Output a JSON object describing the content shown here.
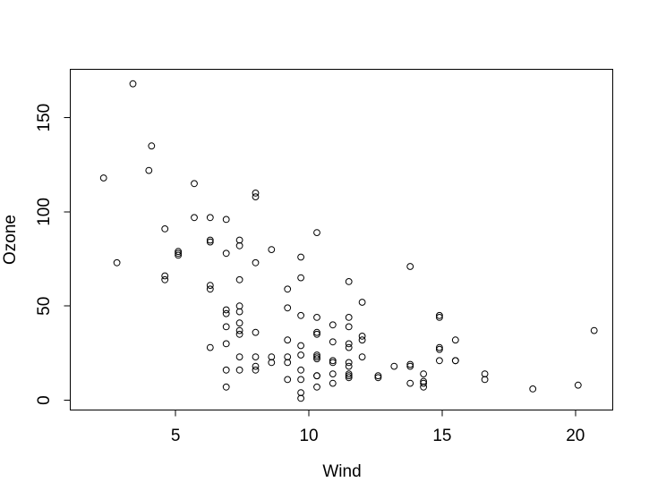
{
  "chart_data": {
    "type": "scatter",
    "xlabel": "Wind",
    "ylabel": "Ozone",
    "x_ticks": [
      5,
      10,
      15,
      20
    ],
    "y_ticks": [
      0,
      50,
      100,
      150
    ],
    "xlim": [
      1.05,
      21.4
    ],
    "ylim": [
      -5.2,
      175.7
    ],
    "grid": false,
    "legend": false,
    "marker": "open-circle",
    "marker_color": "#000000",
    "points_format": "[wind, ozone]",
    "points": [
      [
        7.4,
        41
      ],
      [
        8.0,
        36
      ],
      [
        12.6,
        12
      ],
      [
        11.5,
        18
      ],
      [
        14.9,
        28
      ],
      [
        8.6,
        23
      ],
      [
        13.8,
        19
      ],
      [
        20.1,
        8
      ],
      [
        6.9,
        7
      ],
      [
        9.7,
        16
      ],
      [
        9.2,
        11
      ],
      [
        10.9,
        14
      ],
      [
        13.2,
        18
      ],
      [
        11.5,
        14
      ],
      [
        12.0,
        34
      ],
      [
        18.4,
        6
      ],
      [
        11.5,
        30
      ],
      [
        9.7,
        11
      ],
      [
        9.7,
        1
      ],
      [
        16.6,
        11
      ],
      [
        9.7,
        4
      ],
      [
        12.0,
        32
      ],
      [
        12.0,
        23
      ],
      [
        14.9,
        45
      ],
      [
        5.7,
        115
      ],
      [
        7.4,
        37
      ],
      [
        9.7,
        29
      ],
      [
        13.8,
        71
      ],
      [
        11.5,
        39
      ],
      [
        8.0,
        23
      ],
      [
        14.9,
        21
      ],
      [
        20.7,
        37
      ],
      [
        9.2,
        20
      ],
      [
        11.5,
        12
      ],
      [
        10.3,
        13
      ],
      [
        4.1,
        135
      ],
      [
        9.2,
        49
      ],
      [
        9.2,
        32
      ],
      [
        4.6,
        64
      ],
      [
        10.9,
        40
      ],
      [
        5.1,
        77
      ],
      [
        6.3,
        97
      ],
      [
        5.7,
        97
      ],
      [
        7.4,
        85
      ],
      [
        14.3,
        10
      ],
      [
        14.9,
        27
      ],
      [
        14.3,
        7
      ],
      [
        6.9,
        48
      ],
      [
        10.3,
        35
      ],
      [
        6.3,
        61
      ],
      [
        5.1,
        79
      ],
      [
        11.5,
        63
      ],
      [
        6.9,
        16
      ],
      [
        8.6,
        80
      ],
      [
        8.0,
        108
      ],
      [
        8.6,
        20
      ],
      [
        12.0,
        52
      ],
      [
        7.4,
        82
      ],
      [
        7.4,
        50
      ],
      [
        7.4,
        64
      ],
      [
        9.2,
        59
      ],
      [
        6.9,
        39
      ],
      [
        13.8,
        9
      ],
      [
        7.4,
        16
      ],
      [
        6.9,
        78
      ],
      [
        7.4,
        35
      ],
      [
        4.6,
        66
      ],
      [
        4.0,
        122
      ],
      [
        10.3,
        89
      ],
      [
        8.0,
        110
      ],
      [
        11.5,
        44
      ],
      [
        11.5,
        28
      ],
      [
        9.7,
        65
      ],
      [
        10.3,
        22
      ],
      [
        6.3,
        59
      ],
      [
        7.4,
        23
      ],
      [
        10.9,
        31
      ],
      [
        10.3,
        44
      ],
      [
        15.5,
        21
      ],
      [
        14.3,
        9
      ],
      [
        9.7,
        45
      ],
      [
        3.4,
        168
      ],
      [
        8.0,
        73
      ],
      [
        9.7,
        76
      ],
      [
        2.3,
        118
      ],
      [
        6.3,
        84
      ],
      [
        6.3,
        85
      ],
      [
        6.9,
        96
      ],
      [
        5.1,
        78
      ],
      [
        2.8,
        73
      ],
      [
        4.6,
        91
      ],
      [
        7.4,
        47
      ],
      [
        15.5,
        32
      ],
      [
        10.9,
        20
      ],
      [
        10.3,
        23
      ],
      [
        10.9,
        21
      ],
      [
        9.7,
        24
      ],
      [
        14.9,
        44
      ],
      [
        15.5,
        21
      ],
      [
        6.3,
        28
      ],
      [
        10.9,
        9
      ],
      [
        11.5,
        13
      ],
      [
        6.9,
        46
      ],
      [
        13.8,
        18
      ],
      [
        10.3,
        13
      ],
      [
        10.3,
        24
      ],
      [
        8.0,
        16
      ],
      [
        12.6,
        13
      ],
      [
        9.2,
        23
      ],
      [
        10.3,
        36
      ],
      [
        10.3,
        7
      ],
      [
        16.6,
        14
      ],
      [
        6.9,
        30
      ],
      [
        14.3,
        14
      ],
      [
        8.0,
        18
      ],
      [
        11.5,
        20
      ]
    ]
  }
}
